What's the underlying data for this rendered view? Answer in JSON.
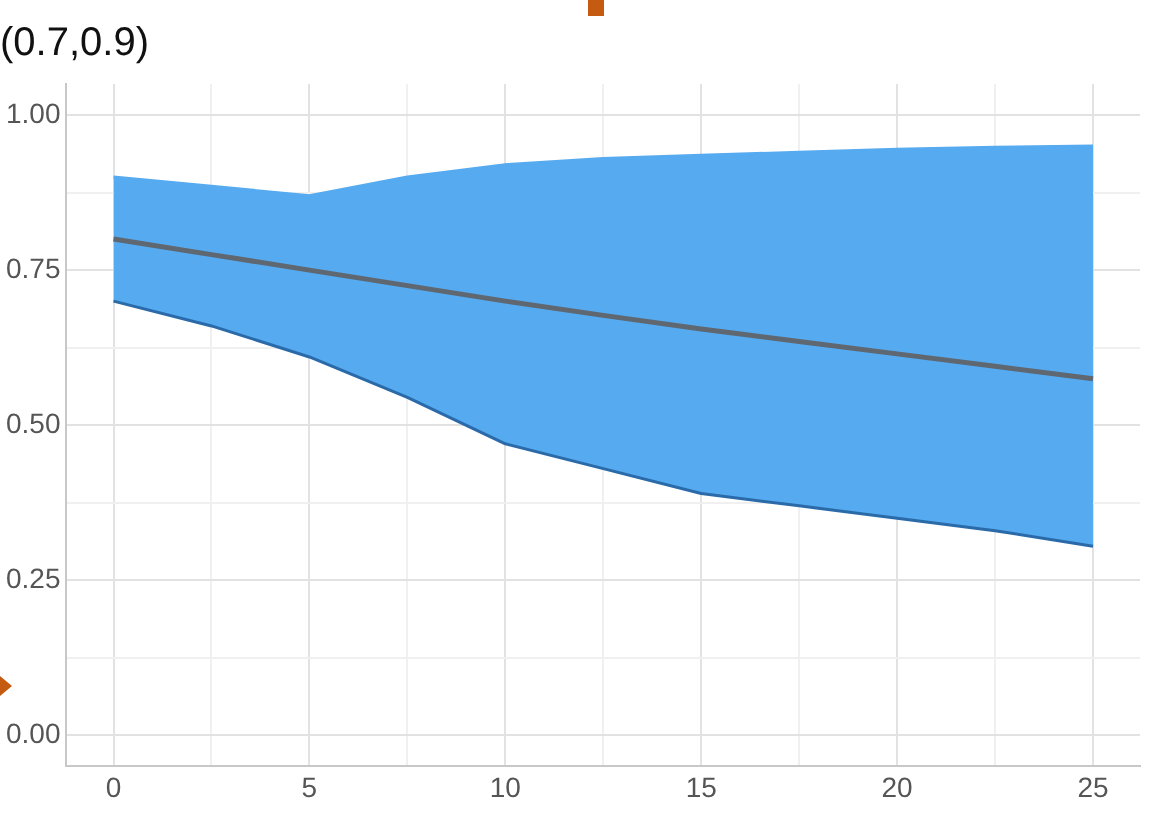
{
  "chart_data": {
    "type": "line",
    "title": "(0.7,0.9)",
    "x": [
      0,
      2.5,
      5,
      7.5,
      10,
      12.5,
      15,
      17.5,
      20,
      22.5,
      25
    ],
    "series": [
      {
        "type": "line",
        "color": "#2a6aa8",
        "values": [
          0.7,
          0.66,
          0.61,
          0.545,
          0.47,
          0.43,
          0.39,
          0.37,
          0.35,
          0.33,
          0.305
        ]
      },
      {
        "type": "area",
        "color": "#55aaf0",
        "values": [
          0.9,
          0.885,
          0.87,
          0.9,
          0.92,
          0.93,
          0.935,
          0.94,
          0.945,
          0.948,
          0.95
        ]
      },
      {
        "type": "line",
        "color": "#5f6770",
        "values": [
          0.8,
          0.775,
          0.75,
          0.725,
          0.7,
          0.677,
          0.655,
          0.635,
          0.615,
          0.595,
          0.575
        ]
      }
    ],
    "xlim": [
      -1.2,
      26.2
    ],
    "xticks": [
      0,
      {
        "value": 2.5,
        "label": null
      },
      5,
      {
        "value": 7.5,
        "label": null
      },
      10,
      {
        "value": 12.5,
        "label": null
      },
      15,
      {
        "value": 17.5,
        "label": null
      },
      20,
      {
        "value": 22.5,
        "label": null
      },
      25
    ],
    "ylim": [
      -0.05,
      1.05
    ],
    "yticks": [
      {
        "value": 0,
        "label": "0.00"
      },
      {
        "value": 0.125,
        "label": null
      },
      {
        "value": 0.25,
        "label": "0.25"
      },
      {
        "value": 0.375,
        "label": null
      },
      {
        "value": 0.5,
        "label": "0.50"
      },
      {
        "value": 0.625,
        "label": null
      },
      {
        "value": 0.75,
        "label": "0.75"
      },
      {
        "value": 0.875,
        "label": null
      },
      {
        "value": 1,
        "label": "1.00"
      }
    ],
    "grid": true
  }
}
